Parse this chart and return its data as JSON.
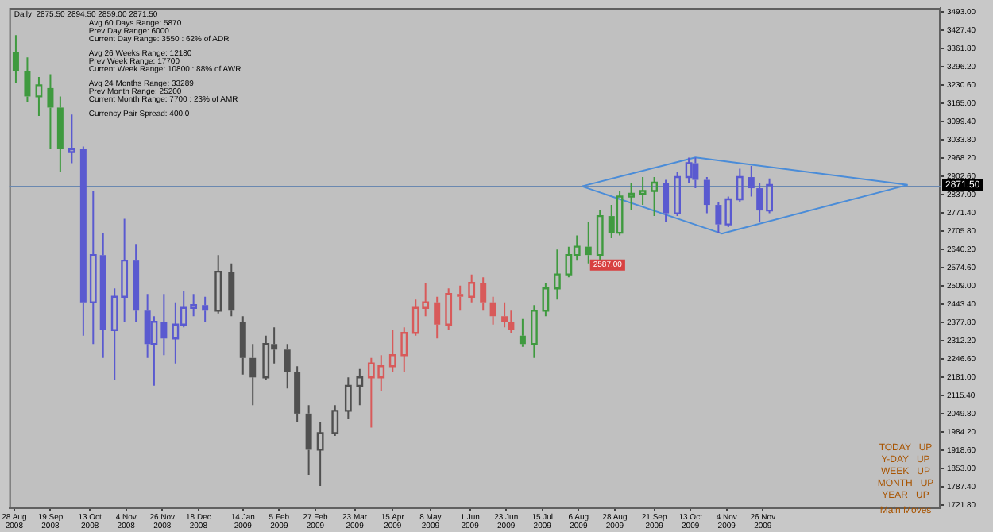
{
  "chart_data": {
    "type": "candlestick",
    "title": "Daily  2875.50 2894.50 2859.00 2871.50",
    "x": [
      "2008-08-29",
      "2008-09-05",
      "2008-09-12",
      "2008-09-19",
      "2008-09-25",
      "2008-10-02",
      "2008-10-09",
      "2008-10-15",
      "2008-10-21",
      "2008-10-28",
      "2008-11-03",
      "2008-11-10",
      "2008-11-17",
      "2008-11-21",
      "2008-11-27",
      "2008-12-04",
      "2008-12-09",
      "2008-12-15",
      "2008-12-22",
      "2008-12-30",
      "2009-01-07",
      "2009-01-14",
      "2009-01-20",
      "2009-01-28",
      "2009-02-02",
      "2009-02-10",
      "2009-02-16",
      "2009-02-23",
      "2009-03-02",
      "2009-03-11",
      "2009-03-19",
      "2009-03-26",
      "2009-04-02",
      "2009-04-08",
      "2009-04-15",
      "2009-04-22",
      "2009-04-29",
      "2009-05-05",
      "2009-05-12",
      "2009-05-19",
      "2009-05-26",
      "2009-06-02",
      "2009-06-09",
      "2009-06-15",
      "2009-06-22",
      "2009-06-26",
      "2009-07-03",
      "2009-07-10",
      "2009-07-17",
      "2009-07-24",
      "2009-07-31",
      "2009-08-05",
      "2009-08-12",
      "2009-08-19",
      "2009-08-26",
      "2009-08-31",
      "2009-09-07",
      "2009-09-14",
      "2009-09-21",
      "2009-09-28",
      "2009-10-05",
      "2009-10-12",
      "2009-10-16",
      "2009-10-23",
      "2009-10-30",
      "2009-11-05",
      "2009-11-12",
      "2009-11-19",
      "2009-11-24",
      "2009-11-30"
    ],
    "ohlc": [
      [
        3350,
        3410,
        3240,
        3280
      ],
      [
        3280,
        3330,
        3170,
        3190
      ],
      [
        3190,
        3260,
        3120,
        3230
      ],
      [
        3220,
        3270,
        3000,
        3150
      ],
      [
        3150,
        3190,
        2920,
        3000
      ],
      [
        2990,
        3125,
        2950,
        3000
      ],
      [
        3000,
        3010,
        2330,
        2450
      ],
      [
        2450,
        2850,
        2300,
        2620
      ],
      [
        2620,
        2700,
        2250,
        2350
      ],
      [
        2350,
        2500,
        2170,
        2470
      ],
      [
        2470,
        2750,
        2380,
        2600
      ],
      [
        2600,
        2660,
        2380,
        2420
      ],
      [
        2420,
        2480,
        2250,
        2300
      ],
      [
        2300,
        2400,
        2150,
        2380
      ],
      [
        2380,
        2480,
        2260,
        2320
      ],
      [
        2320,
        2450,
        2230,
        2370
      ],
      [
        2370,
        2490,
        2360,
        2430
      ],
      [
        2430,
        2480,
        2400,
        2440
      ],
      [
        2440,
        2470,
        2380,
        2420
      ],
      [
        2420,
        2620,
        2410,
        2560
      ],
      [
        2560,
        2590,
        2400,
        2420
      ],
      [
        2380,
        2400,
        2190,
        2250
      ],
      [
        2250,
        2300,
        2080,
        2180
      ],
      [
        2180,
        2330,
        2170,
        2300
      ],
      [
        2300,
        2360,
        2230,
        2280
      ],
      [
        2280,
        2300,
        2140,
        2200
      ],
      [
        2200,
        2220,
        2020,
        2050
      ],
      [
        2050,
        2080,
        1830,
        1920
      ],
      [
        1920,
        2020,
        1790,
        1980
      ],
      [
        1980,
        2080,
        1970,
        2060
      ],
      [
        2060,
        2180,
        2030,
        2150
      ],
      [
        2150,
        2210,
        2080,
        2180
      ],
      [
        2180,
        2250,
        2000,
        2230
      ],
      [
        2180,
        2260,
        2130,
        2220
      ],
      [
        2220,
        2350,
        2200,
        2260
      ],
      [
        2260,
        2360,
        2200,
        2340
      ],
      [
        2340,
        2460,
        2330,
        2430
      ],
      [
        2430,
        2520,
        2400,
        2450
      ],
      [
        2450,
        2470,
        2320,
        2370
      ],
      [
        2370,
        2500,
        2350,
        2480
      ],
      [
        2480,
        2510,
        2420,
        2470
      ],
      [
        2470,
        2550,
        2450,
        2520
      ],
      [
        2520,
        2540,
        2420,
        2450
      ],
      [
        2450,
        2470,
        2370,
        2400
      ],
      [
        2400,
        2450,
        2360,
        2380
      ],
      [
        2380,
        2420,
        2340,
        2350
      ],
      [
        2330,
        2390,
        2290,
        2300
      ],
      [
        2300,
        2440,
        2250,
        2420
      ],
      [
        2420,
        2520,
        2400,
        2500
      ],
      [
        2500,
        2640,
        2460,
        2550
      ],
      [
        2550,
        2650,
        2540,
        2620
      ],
      [
        2620,
        2690,
        2600,
        2650
      ],
      [
        2650,
        2740,
        2590,
        2620
      ],
      [
        2620,
        2780,
        2600,
        2760
      ],
      [
        2760,
        2800,
        2680,
        2700
      ],
      [
        2700,
        2850,
        2690,
        2830
      ],
      [
        2830,
        2880,
        2780,
        2840
      ],
      [
        2840,
        2900,
        2800,
        2850
      ],
      [
        2850,
        2900,
        2760,
        2880
      ],
      [
        2880,
        2890,
        2740,
        2770
      ],
      [
        2770,
        2920,
        2760,
        2900
      ],
      [
        2900,
        2970,
        2880,
        2950
      ],
      [
        2950,
        2970,
        2860,
        2890
      ],
      [
        2890,
        2900,
        2770,
        2800
      ],
      [
        2800,
        2810,
        2700,
        2730
      ],
      [
        2730,
        2830,
        2720,
        2820
      ],
      [
        2820,
        2930,
        2810,
        2900
      ],
      [
        2900,
        2940,
        2830,
        2860
      ],
      [
        2860,
        2880,
        2740,
        2780
      ],
      [
        2780,
        2895,
        2770,
        2871.5
      ]
    ],
    "colors": [
      "#3f9a3f",
      "#3f9a3f",
      "#3f9a3f",
      "#3f9a3f",
      "#3f9a3f",
      "#5a5ad0",
      "#5a5ad0",
      "#5a5ad0",
      "#5a5ad0",
      "#5a5ad0",
      "#5a5ad0",
      "#5a5ad0",
      "#5a5ad0",
      "#5a5ad0",
      "#5a5ad0",
      "#5a5ad0",
      "#5a5ad0",
      "#5a5ad0",
      "#5a5ad0",
      "#505050",
      "#505050",
      "#505050",
      "#505050",
      "#505050",
      "#505050",
      "#505050",
      "#505050",
      "#505050",
      "#505050",
      "#505050",
      "#505050",
      "#505050",
      "#d85a5a",
      "#d85a5a",
      "#d85a5a",
      "#d85a5a",
      "#d85a5a",
      "#d85a5a",
      "#d85a5a",
      "#d85a5a",
      "#d85a5a",
      "#d85a5a",
      "#d85a5a",
      "#d85a5a",
      "#d85a5a",
      "#d85a5a",
      "#3f9a3f",
      "#3f9a3f",
      "#3f9a3f",
      "#3f9a3f",
      "#3f9a3f",
      "#3f9a3f",
      "#3f9a3f",
      "#3f9a3f",
      "#3f9a3f",
      "#3f9a3f",
      "#3f9a3f",
      "#3f9a3f",
      "#3f9a3f",
      "#5a5ad0",
      "#5a5ad0",
      "#5a5ad0",
      "#5a5ad0",
      "#5a5ad0",
      "#5a5ad0",
      "#5a5ad0",
      "#5a5ad0",
      "#5a5ad0",
      "#5a5ad0",
      "#5a5ad0"
    ],
    "series": [
      {
        "type": "line",
        "color": "#4a8cd8",
        "x": [
          "2009-08-08",
          "2009-10-16",
          "2010-02-22"
        ],
        "values": [
          2867,
          2971,
          2872
        ]
      },
      {
        "type": "line",
        "color": "#4a8cd8",
        "x": [
          "2009-08-08",
          "2009-11-01",
          "2010-02-22"
        ],
        "values": [
          2867,
          2697,
          2872
        ]
      }
    ],
    "xlim": [
      "2008-08-25",
      "2010-03-14"
    ],
    "xticks": [
      {
        "value": "2008-08-28",
        "label": "28 Aug 2008"
      },
      {
        "value": "2008-09-19",
        "label": "19 Sep 2008"
      },
      {
        "value": "2008-10-13",
        "label": "13 Oct 2008"
      },
      {
        "value": "2008-11-04",
        "label": "4 Nov 2008"
      },
      {
        "value": "2008-11-26",
        "label": "26 Nov 2008"
      },
      {
        "value": "2008-12-18",
        "label": "18 Dec 2008"
      },
      {
        "value": "2009-01-14",
        "label": "14 Jan 2009"
      },
      {
        "value": "2009-02-05",
        "label": "5 Feb 2009"
      },
      {
        "value": "2009-02-27",
        "label": "27 Feb 2009"
      },
      {
        "value": "2009-03-23",
        "label": "23 Mar 2009"
      },
      {
        "value": "2009-04-15",
        "label": "15 Apr 2009"
      },
      {
        "value": "2009-05-08",
        "label": "8 May 2009"
      },
      {
        "value": "2009-06-01",
        "label": "1 Jun 2009"
      },
      {
        "value": "2009-06-23",
        "label": "23 Jun 2009"
      },
      {
        "value": "2009-07-15",
        "label": "15 Jul 2009"
      },
      {
        "value": "2009-08-06",
        "label": "6 Aug 2009"
      },
      {
        "value": "2009-08-28",
        "label": "28 Aug 2009"
      },
      {
        "value": "2009-09-21",
        "label": "21 Sep 2009"
      },
      {
        "value": "2009-10-13",
        "label": "13 Oct 2009"
      },
      {
        "value": "2009-11-04",
        "label": "4 Nov 2009"
      },
      {
        "value": "2009-11-26",
        "label": "26 Nov 2009"
      }
    ],
    "ylim": [
      1710,
      3508
    ],
    "yticks": [
      {
        "value": 1721.8,
        "label": "1721.80"
      },
      {
        "value": 1787.4,
        "label": "1787.40"
      },
      {
        "value": 1853,
        "label": "1853.00"
      },
      {
        "value": 1918.6,
        "label": "1918.60"
      },
      {
        "value": 1984.2,
        "label": "1984.20"
      },
      {
        "value": 2049.8,
        "label": "2049.80"
      },
      {
        "value": 2115.4,
        "label": "2115.40"
      },
      {
        "value": 2181,
        "label": "2181.00"
      },
      {
        "value": 2246.6,
        "label": "2246.60"
      },
      {
        "value": 2312.2,
        "label": "2312.20"
      },
      {
        "value": 2377.8,
        "label": "2377.80"
      },
      {
        "value": 2443.4,
        "label": "2443.40"
      },
      {
        "value": 2509,
        "label": "2509.00"
      },
      {
        "value": 2574.6,
        "label": "2574.60"
      },
      {
        "value": 2640.2,
        "label": "2640.20"
      },
      {
        "value": 2705.8,
        "label": "2705.80"
      },
      {
        "value": 2771.4,
        "label": "2771.40"
      },
      {
        "value": 2837,
        "label": "2837.00"
      },
      {
        "value": 2902.6,
        "label": "2902.60"
      },
      {
        "value": 2968.2,
        "label": "2968.20"
      },
      {
        "value": 3033.8,
        "label": "3033.80"
      },
      {
        "value": 3099.4,
        "label": "3099.40"
      },
      {
        "value": 3165,
        "label": "3165.00"
      },
      {
        "value": 3230.6,
        "label": "3230.60"
      },
      {
        "value": 3296.2,
        "label": "3296.20"
      },
      {
        "value": 3361.8,
        "label": "3361.80"
      },
      {
        "value": 3427.4,
        "label": "3427.40"
      },
      {
        "value": 3493,
        "label": "3493.00"
      }
    ],
    "grid": false,
    "ref_lines": [
      {
        "axis": "y",
        "value": 2871.5,
        "label": "2871.50",
        "color": "#6a88b0"
      }
    ],
    "annotations": [
      "Avg 60 Days Range: 5870",
      "Prev Day Range: 6000",
      "Current Day Range: 3550 : 62% of ADR",
      "Avg 26 Weeks Range: 12180",
      "Prev Week Range: 17700",
      "Current Week Range: 10800 : 88% of AWR",
      "Avg 24 Months Range: 33289",
      "Prev Month Range: 25200",
      "Current Month Range: 7700 : 23% of AMR",
      "Currency Pair Spread: 400.0",
      "TODAY   UP",
      "Y-DAY   UP",
      "WEEK   UP",
      "MONTH   UP",
      "YEAR   UP",
      "Main Moves",
      {
        "text": "2587.00",
        "x": "2009-08-12",
        "y": 2587
      }
    ]
  }
}
